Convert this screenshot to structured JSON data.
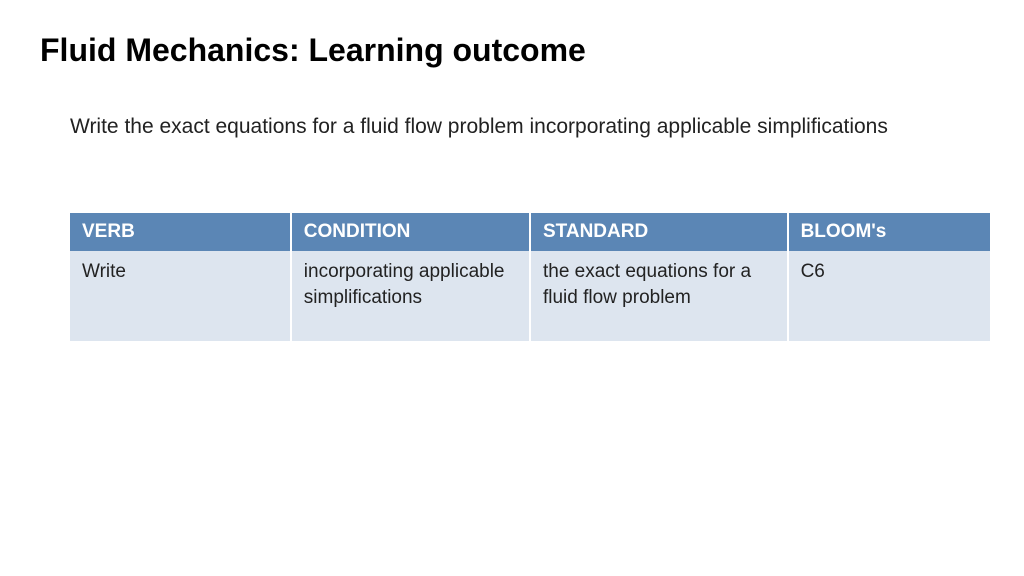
{
  "title": "Fluid Mechanics: Learning outcome",
  "description": "Write the exact equations for a fluid flow problem incorporating applicable simplifications",
  "table": {
    "columns": [
      "VERB",
      "CONDITION",
      "STANDARD",
      "BLOOM's"
    ],
    "column_widths": [
      "24%",
      "26%",
      "28%",
      "22%"
    ],
    "rows": [
      [
        "Write",
        "incorporating applicable simplifications",
        "the exact equations for a fluid flow problem",
        "C6"
      ]
    ],
    "header_bg": "#5b86b5",
    "header_fg": "#ffffff",
    "cell_bg": "#dde5ef",
    "cell_fg": "#222222",
    "border_color": "#ffffff",
    "header_fontsize": 19,
    "cell_fontsize": 19
  },
  "background_color": "#ffffff"
}
